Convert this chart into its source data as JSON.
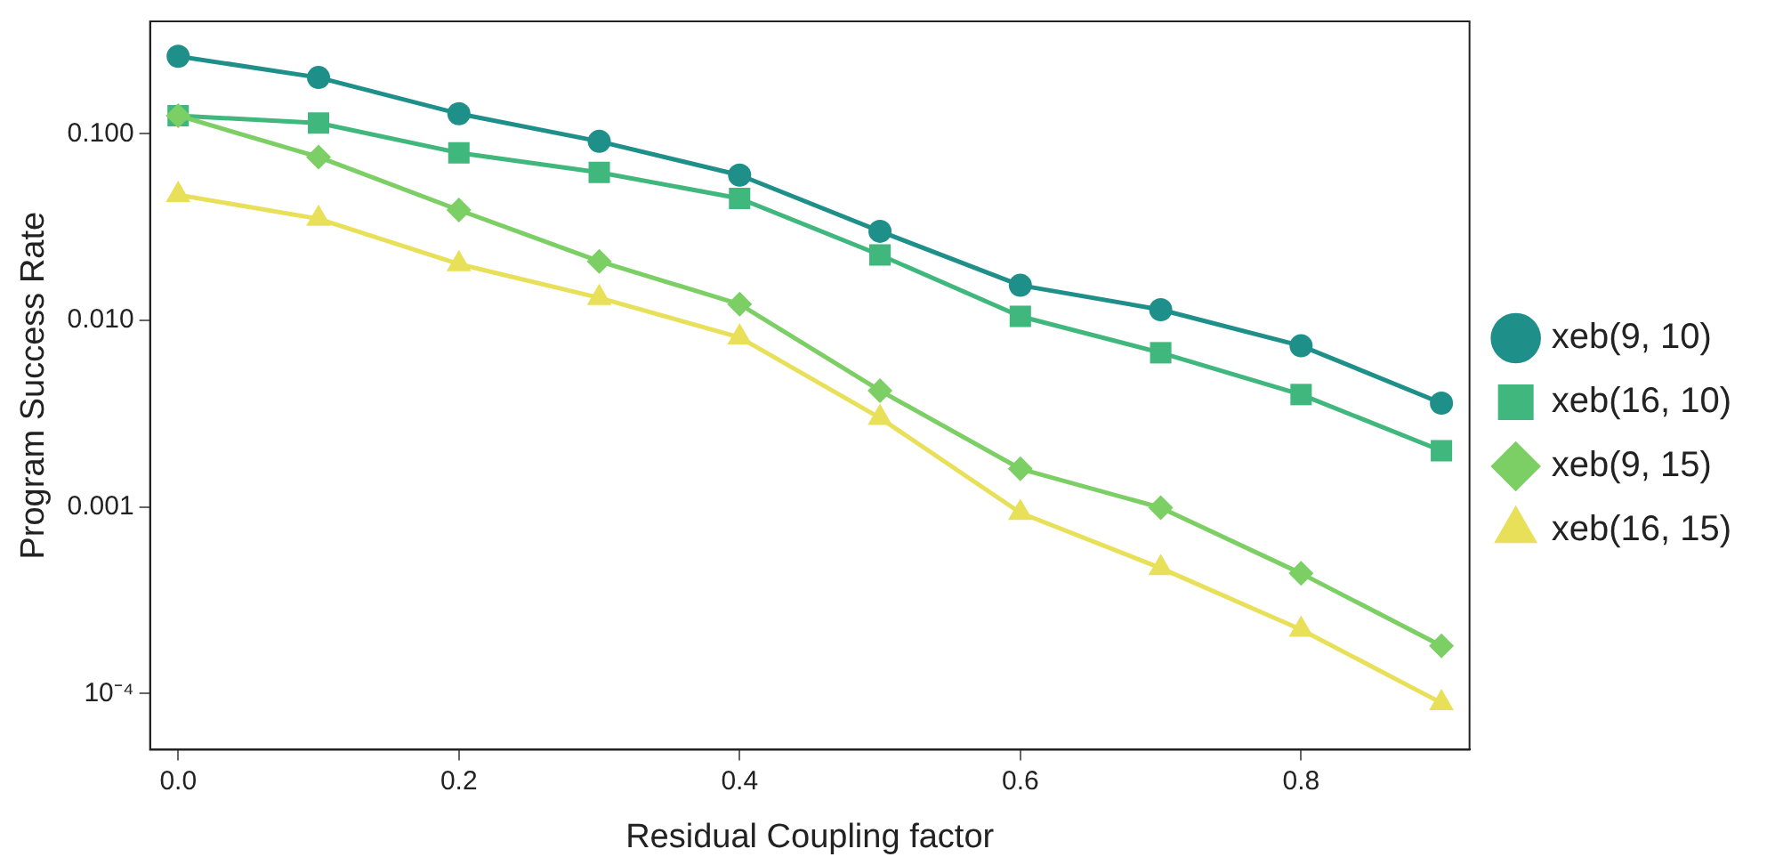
{
  "chart_data": {
    "type": "line",
    "xlabel": "Residual Coupling factor",
    "ylabel": "Program Success Rate",
    "x": [
      0,
      0.1,
      0.2,
      0.3,
      0.4,
      0.5,
      0.6,
      0.7,
      0.8,
      0.9
    ],
    "series": [
      {
        "name": "xeb(9, 10)",
        "color": "#1f8f89",
        "marker": "circle",
        "values": [
          0.26,
          0.2,
          0.128,
          0.091,
          0.06,
          0.03,
          0.0154,
          0.0114,
          0.0073,
          0.0036
        ]
      },
      {
        "name": "xeb(16, 10)",
        "color": "#40b77c",
        "marker": "square",
        "values": [
          0.125,
          0.114,
          0.079,
          0.062,
          0.045,
          0.0224,
          0.0105,
          0.0067,
          0.004,
          0.002
        ]
      },
      {
        "name": "xeb(9, 15)",
        "color": "#7ccf64",
        "marker": "diamond",
        "values": [
          0.125,
          0.075,
          0.039,
          0.0207,
          0.0122,
          0.0042,
          0.0016,
          0.00099,
          0.00044,
          0.00018
        ]
      },
      {
        "name": "xeb(16, 15)",
        "color": "#e8e058",
        "marker": "triangle",
        "values": [
          0.047,
          0.035,
          0.02,
          0.0132,
          0.0081,
          0.003,
          0.00093,
          0.00047,
          0.00022,
          8.9e-05
        ]
      }
    ],
    "log": "y",
    "xlim": [
      -0.02,
      0.92
    ],
    "ylim": [
      5e-05,
      0.4
    ],
    "xticks": [
      {
        "value": 0,
        "label": "0.0"
      },
      {
        "value": 0.2,
        "label": "0.2"
      },
      {
        "value": 0.4,
        "label": "0.4"
      },
      {
        "value": 0.6,
        "label": "0.6"
      },
      {
        "value": 0.8,
        "label": "0.8"
      }
    ],
    "yticks": [
      {
        "value": 0.0001,
        "label": "10⁻⁴"
      },
      {
        "value": 0.001,
        "label": "0.001"
      },
      {
        "value": 0.01,
        "label": "0.010"
      },
      {
        "value": 0.1,
        "label": "0.100"
      }
    ],
    "grid": false,
    "legend": "right",
    "line_style": "solid"
  }
}
